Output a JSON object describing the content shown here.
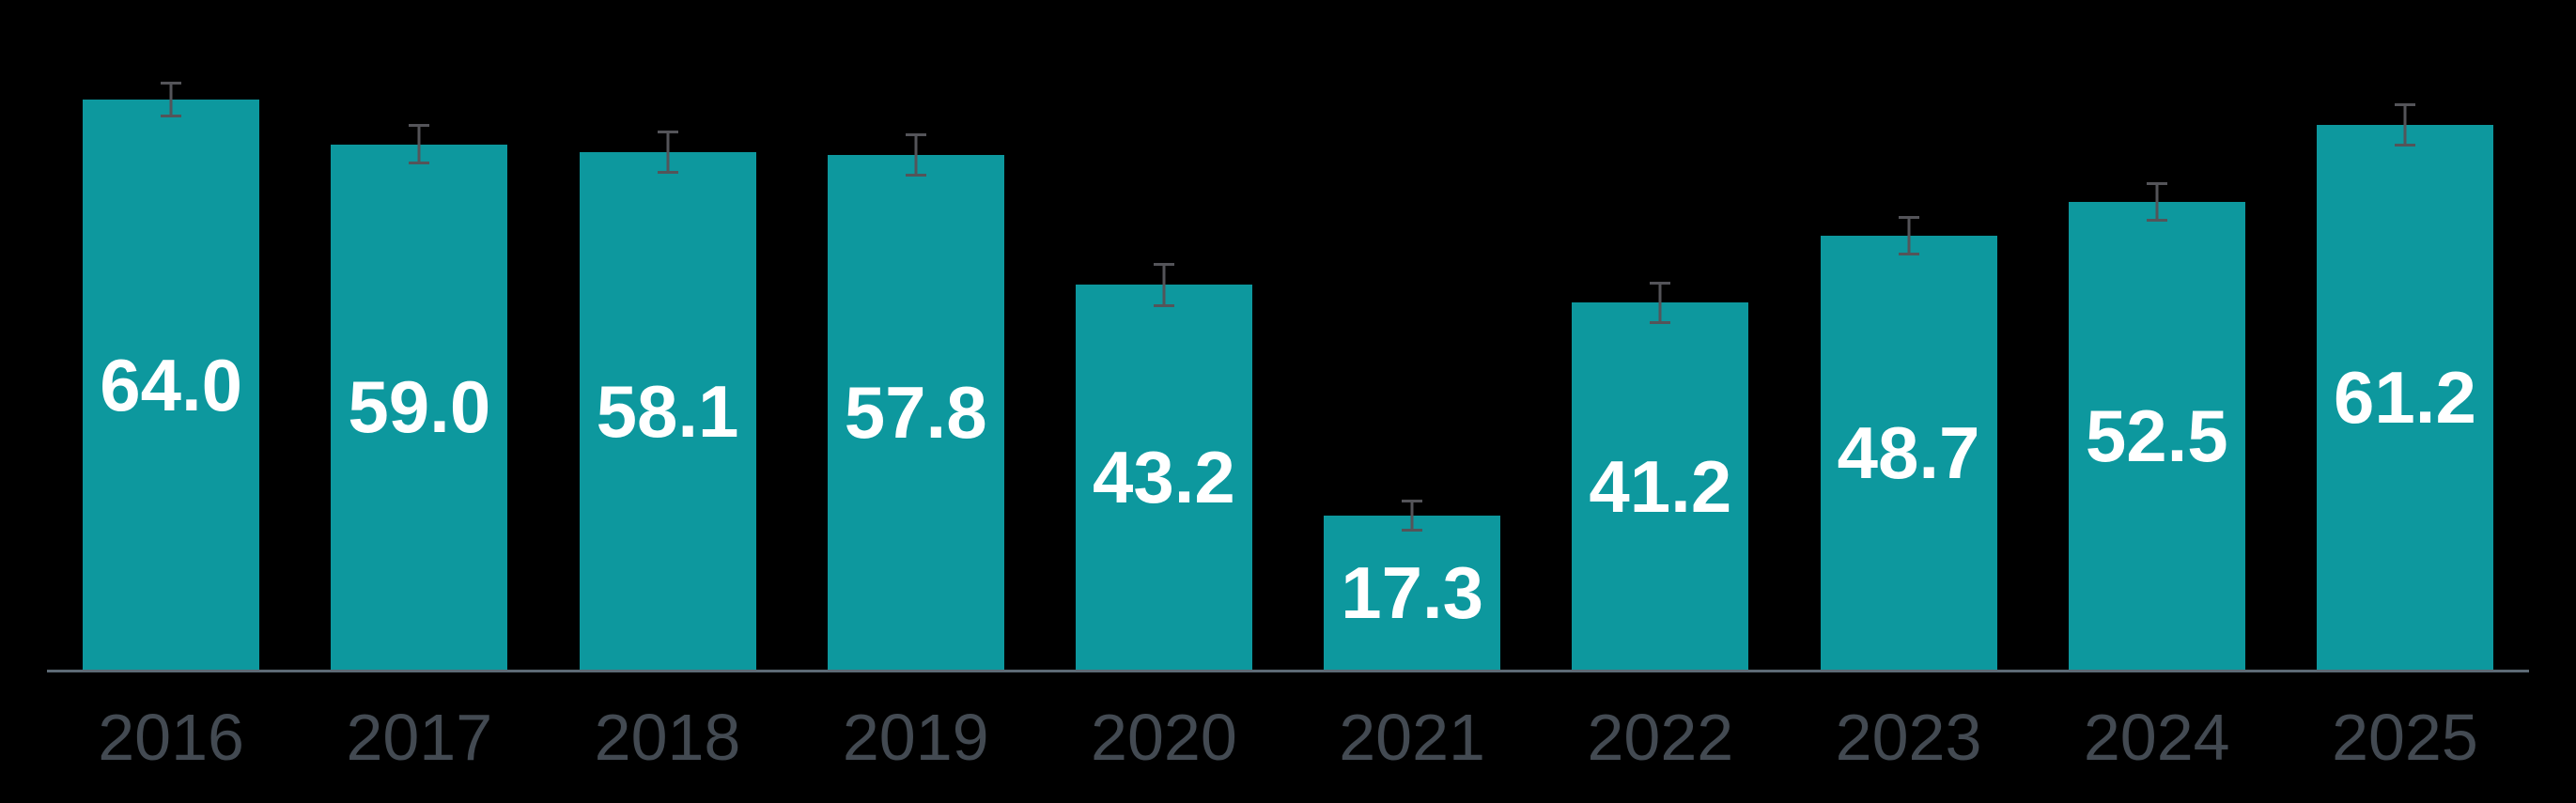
{
  "colors": {
    "background": "#000000",
    "bar": "#0d989e",
    "value_label": "#ffffff",
    "year_label": "#434a52",
    "axis_line": "#5d6a75",
    "error_bar": "#545459"
  },
  "chart_data": {
    "type": "bar",
    "title": "",
    "xlabel": "",
    "ylabel": "",
    "categories": [
      "2016",
      "2017",
      "2018",
      "2019",
      "2020",
      "2021",
      "2022",
      "2023",
      "2024",
      "2025"
    ],
    "values": [
      64.0,
      59.0,
      58.1,
      57.8,
      43.2,
      17.3,
      41.2,
      48.7,
      52.5,
      61.2
    ],
    "value_labels": [
      "64.0",
      "59.0",
      "58.1",
      "57.8",
      "43.2",
      "17.3",
      "41.2",
      "48.7",
      "52.5",
      "61.2"
    ],
    "errors": [
      2.0,
      2.3,
      2.4,
      2.4,
      2.5,
      1.8,
      2.4,
      2.2,
      2.2,
      2.4
    ],
    "ylim": [
      0,
      75.2
    ],
    "grid": false,
    "legend": false,
    "error_bars": true,
    "bar_labels_inside": true,
    "background": "black"
  }
}
